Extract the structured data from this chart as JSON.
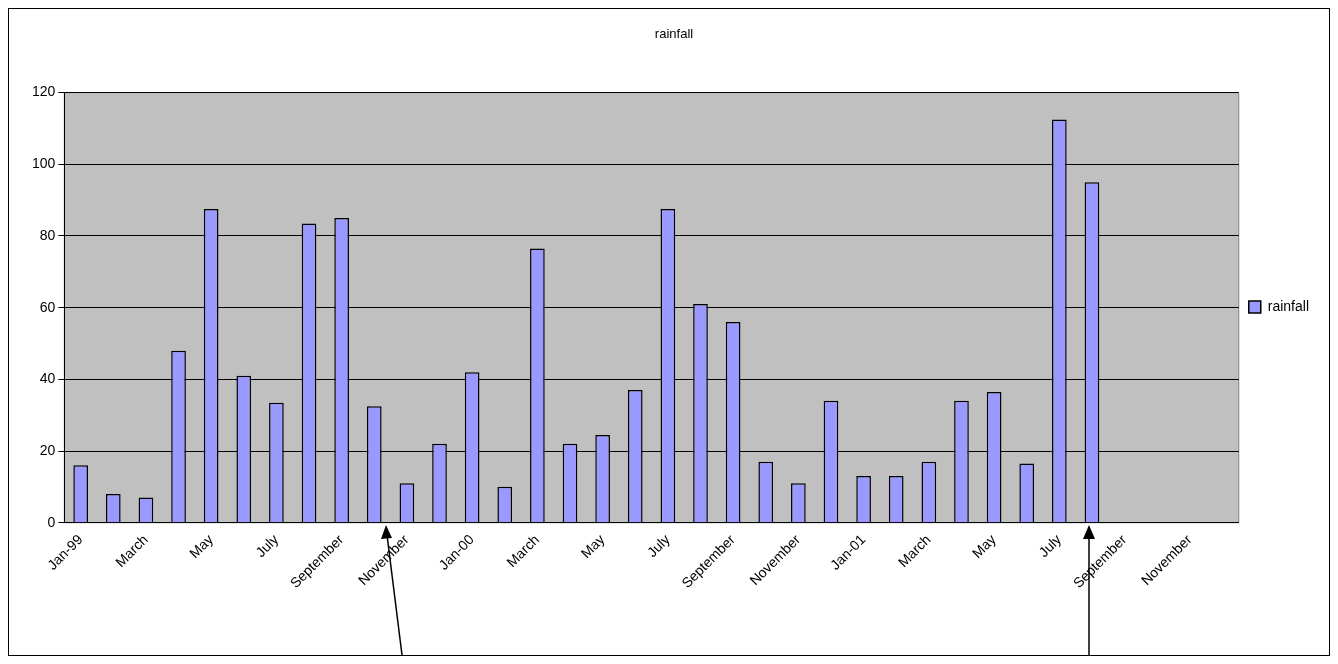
{
  "chart_data": {
    "type": "bar",
    "title": "rainfall",
    "categories": [
      "Jan-99",
      null,
      "March",
      null,
      "May",
      null,
      "July",
      null,
      "September",
      null,
      "November",
      null,
      "Jan-00",
      null,
      "March",
      null,
      "May",
      null,
      "July",
      null,
      "September",
      null,
      "November",
      null,
      "Jan-01",
      null,
      "March",
      null,
      "May",
      null,
      "July",
      null,
      "September",
      null,
      "November",
      null
    ],
    "series": [
      {
        "name": "rainfall",
        "color": "#9999ff",
        "values": [
          16,
          8,
          7,
          48,
          87.5,
          41,
          33.5,
          83.5,
          85,
          32.5,
          11,
          22,
          42,
          10,
          76.5,
          22,
          24.5,
          37,
          87.5,
          61,
          56,
          17,
          11,
          34,
          13,
          13,
          17,
          34,
          36.5,
          16.5,
          112.5,
          95,
          null,
          null,
          null,
          null
        ]
      }
    ],
    "ylim": [
      0,
      120
    ],
    "yticks": [
      0,
      20,
      40,
      60,
      80,
      100,
      120
    ],
    "grid": "y",
    "legend": "right"
  }
}
